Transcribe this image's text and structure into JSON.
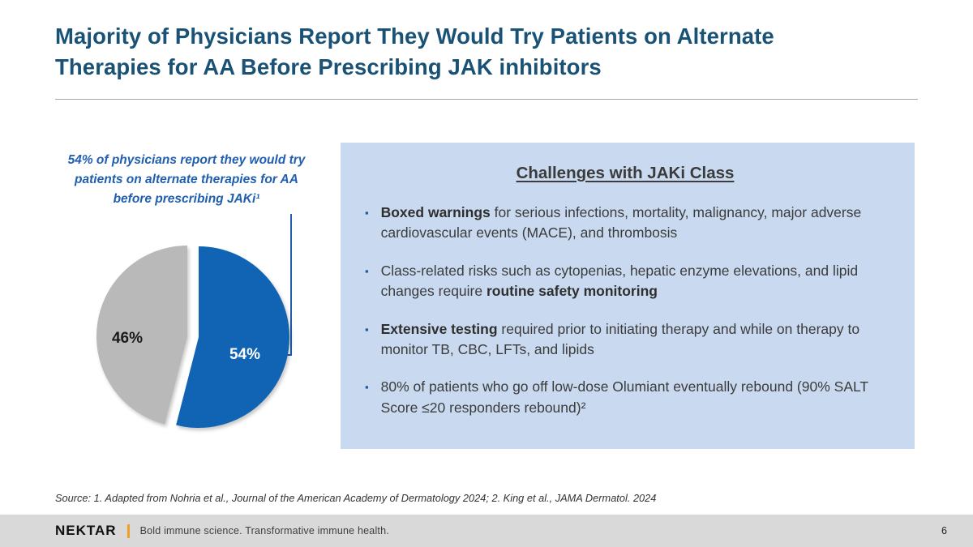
{
  "slide": {
    "title": "Majority of Physicians Report They Would Try Patients on Alternate Therapies for AA Before Prescribing JAK inhibitors",
    "page_number": "6"
  },
  "pie_section": {
    "caption": "54% of physicians report they would try patients on alternate therapies for AA before prescribing JAKi¹"
  },
  "chart_data": {
    "type": "pie",
    "labels": [
      "54%",
      "46%"
    ],
    "values": [
      54,
      46
    ],
    "colors": [
      "#1164b4",
      "#b9b9b9"
    ],
    "title": "54% of physicians report they would try patients on alternate therapies for AA before prescribing JAKi¹",
    "legend": "none",
    "exploded_slice": "54%",
    "start_angle_deg": 0,
    "direction": "clockwise"
  },
  "challenges": {
    "heading": "Challenges with JAKi Class",
    "bullets": [
      {
        "segments": [
          {
            "t": "Boxed warnings",
            "b": true
          },
          {
            "t": " for serious infections, mortality, malignancy, major adverse cardiovascular events (MACE), and thrombosis",
            "b": false
          }
        ]
      },
      {
        "segments": [
          {
            "t": "Class-related risks such as cytopenias, hepatic enzyme elevations, and lipid changes require ",
            "b": false
          },
          {
            "t": "routine safety monitoring",
            "b": true
          }
        ]
      },
      {
        "segments": [
          {
            "t": "Extensive testing",
            "b": true
          },
          {
            "t": " required prior to initiating therapy and while on therapy to monitor TB, CBC, LFTs, and lipids",
            "b": false
          }
        ]
      },
      {
        "segments": [
          {
            "t": "80% of patients who go off low-dose Olumiant eventually rebound (90% SALT Score ≤20 responders rebound)²",
            "b": false
          }
        ]
      }
    ]
  },
  "footer": {
    "source": "Source: 1. Adapted from Nohria et al., Journal of the American Academy of Dermatology 2024; 2. King et al., JAMA Dermatol. 2024",
    "logo": "NEKTAR",
    "tagline": "Bold immune science. Transformative immune health."
  }
}
